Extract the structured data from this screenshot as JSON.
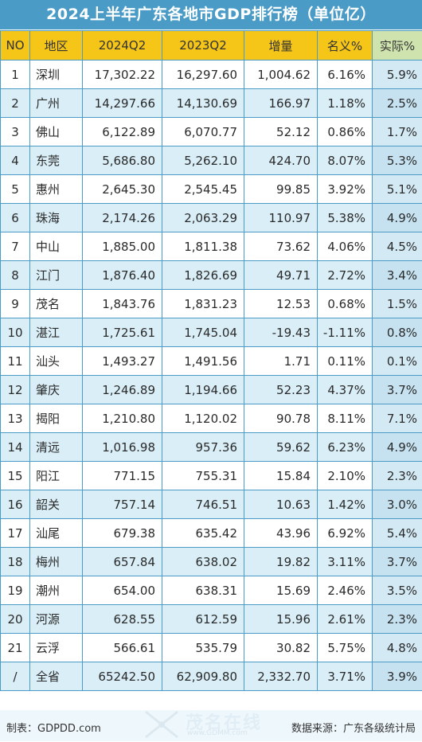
{
  "title": "2024上半年广东各地市GDP排行榜（单位亿）",
  "headers": [
    "NO",
    "地区",
    "2024Q2",
    "2023Q2",
    "增量",
    "名义%",
    "实际%"
  ],
  "rows": [
    [
      "1",
      "深圳",
      "17,302.22",
      "16,297.60",
      "1,004.62",
      "6.16%",
      "5.9%"
    ],
    [
      "2",
      "广州",
      "14,297.66",
      "14,130.69",
      "166.97",
      "1.18%",
      "2.5%"
    ],
    [
      "3",
      "佛山",
      "6,122.89",
      "6,070.77",
      "52.12",
      "0.86%",
      "1.7%"
    ],
    [
      "4",
      "东莞",
      "5,686.80",
      "5,262.10",
      "424.70",
      "8.07%",
      "5.3%"
    ],
    [
      "5",
      "惠州",
      "2,645.30",
      "2,545.45",
      "99.85",
      "3.92%",
      "5.1%"
    ],
    [
      "6",
      "珠海",
      "2,174.26",
      "2,063.29",
      "110.97",
      "5.38%",
      "4.9%"
    ],
    [
      "7",
      "中山",
      "1,885.00",
      "1,811.38",
      "73.62",
      "4.06%",
      "4.5%"
    ],
    [
      "8",
      "江门",
      "1,876.40",
      "1,826.69",
      "49.71",
      "2.72%",
      "3.4%"
    ],
    [
      "9",
      "茂名",
      "1,843.76",
      "1,831.23",
      "12.53",
      "0.68%",
      "1.5%"
    ],
    [
      "10",
      "湛江",
      "1,725.61",
      "1,745.04",
      "-19.43",
      "-1.11%",
      "0.8%"
    ],
    [
      "11",
      "汕头",
      "1,493.27",
      "1,491.56",
      "1.71",
      "0.11%",
      "0.1%"
    ],
    [
      "12",
      "肇庆",
      "1,246.89",
      "1,194.66",
      "52.23",
      "4.37%",
      "3.7%"
    ],
    [
      "13",
      "揭阳",
      "1,210.80",
      "1,120.02",
      "90.78",
      "8.11%",
      "7.1%"
    ],
    [
      "14",
      "清远",
      "1,016.98",
      "957.36",
      "59.62",
      "6.23%",
      "4.9%"
    ],
    [
      "15",
      "阳江",
      "771.15",
      "755.31",
      "15.84",
      "2.10%",
      "2.3%"
    ],
    [
      "16",
      "韶关",
      "757.14",
      "746.51",
      "10.63",
      "1.42%",
      "3.0%"
    ],
    [
      "17",
      "汕尾",
      "679.38",
      "635.42",
      "43.96",
      "6.92%",
      "5.4%"
    ],
    [
      "18",
      "梅州",
      "657.84",
      "638.02",
      "19.82",
      "3.11%",
      "3.7%"
    ],
    [
      "19",
      "潮州",
      "654.00",
      "638.31",
      "15.69",
      "2.46%",
      "3.5%"
    ],
    [
      "20",
      "河源",
      "628.55",
      "612.59",
      "15.96",
      "2.61%",
      "2.3%"
    ],
    [
      "21",
      "云浮",
      "566.61",
      "535.79",
      "30.82",
      "5.75%",
      "4.8%"
    ],
    [
      "/",
      "全省",
      "65242.50",
      "62,909.80",
      "2,332.70",
      "3.71%",
      "3.9%"
    ]
  ],
  "footer": {
    "left": "制表：GDPDD.com",
    "right": "数据来源：广东各级统计局"
  },
  "watermark": {
    "brand": "茂名在线",
    "url": "www.GDMM.com"
  },
  "colors": {
    "title_bg": "#4a9cc7",
    "header_bg": "#f5c518",
    "header_real_bg": "#cfe3ae",
    "alt_row_bg": "#d9eef7",
    "border": "#4a9cc7"
  }
}
